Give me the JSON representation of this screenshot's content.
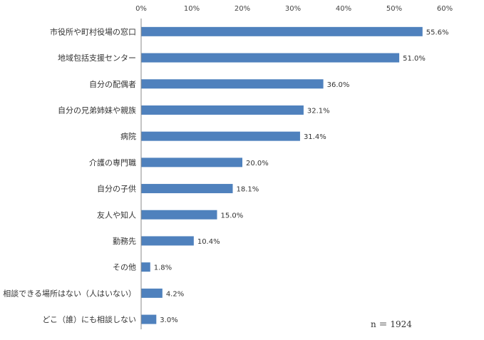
{
  "chart_data": {
    "type": "bar",
    "orientation": "horizontal",
    "categories": [
      "市役所や町村役場の窓口",
      "地域包括支援センター",
      "自分の配偶者",
      "自分の兄弟姉妹や親族",
      "病院",
      "介護の専門職",
      "自分の子供",
      "友人や知人",
      "勤務先",
      "その他",
      "相談できる場所はない（人はいない）",
      "どこ（誰）にも相談しない"
    ],
    "values": [
      55.6,
      51.0,
      36.0,
      32.1,
      31.4,
      20.0,
      18.1,
      15.0,
      10.4,
      1.8,
      4.2,
      3.0
    ],
    "data_labels": [
      "55.6%",
      "51.0%",
      "36.0%",
      "32.1%",
      "31.4%",
      "20.0%",
      "18.1%",
      "15.0%",
      "10.4%",
      "1.8%",
      "4.2%",
      "3.0%"
    ],
    "x_ticks": [
      "0%",
      "10%",
      "20%",
      "30%",
      "40%",
      "50%",
      "60%"
    ],
    "xlim": [
      0,
      60
    ],
    "x_axis_position": "top",
    "grid": false,
    "bar_color": "#4f81bd",
    "note": "n ＝ 1924"
  }
}
